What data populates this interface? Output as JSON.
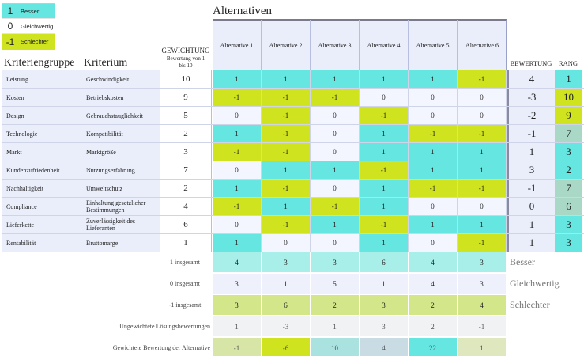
{
  "legend": [
    {
      "symbol": "1",
      "label": "Besser",
      "color": "#66e6e0"
    },
    {
      "symbol": "0",
      "label": "Gleichwertig",
      "color": "#ffffff"
    },
    {
      "symbol": "-1",
      "label": "Schlechter",
      "color": "#cfe31e"
    }
  ],
  "headers": {
    "alternatives_title": "Alternativen",
    "group": "Kriteriengruppe",
    "criterion": "Kriterium",
    "weighting": "GEWICHTUNG",
    "weighting_sub": "Bewertung von 1 bis 10",
    "rating": "BEWERTUNG",
    "rank": "RANG"
  },
  "alternatives": [
    "Alternative 1",
    "Alternative 2",
    "Alternative 3",
    "Alternative 4",
    "Alternative 5",
    "Alternative 6"
  ],
  "rows": [
    {
      "group": "Leistung",
      "criterion": "Geschwindigkeit",
      "weight": "10",
      "values": [
        "1",
        "1",
        "1",
        "1",
        "1",
        "-1"
      ],
      "score": "4",
      "rank": "1"
    },
    {
      "group": "Kosten",
      "criterion": "Betriebskosten",
      "weight": "9",
      "values": [
        "-1",
        "-1",
        "-1",
        "0",
        "0",
        "0"
      ],
      "score": "-3",
      "rank": "10"
    },
    {
      "group": "Design",
      "criterion": "Gebrauchstauglichkeit",
      "weight": "5",
      "values": [
        "0",
        "-1",
        "0",
        "-1",
        "0",
        "0"
      ],
      "score": "-2",
      "rank": "9"
    },
    {
      "group": "Technologie",
      "criterion": "Kompatibilität",
      "weight": "2",
      "values": [
        "1",
        "-1",
        "0",
        "1",
        "-1",
        "-1"
      ],
      "score": "-1",
      "rank": "7"
    },
    {
      "group": "Markt",
      "criterion": "Marktgröße",
      "weight": "3",
      "values": [
        "-1",
        "-1",
        "0",
        "1",
        "1",
        "1"
      ],
      "score": "1",
      "rank": "3"
    },
    {
      "group": "Kundenzufriedenheit",
      "criterion": "Nutzungserfahrung",
      "weight": "7",
      "values": [
        "0",
        "1",
        "1",
        "-1",
        "1",
        "1"
      ],
      "score": "3",
      "rank": "2"
    },
    {
      "group": "Nachhaltigkeit",
      "criterion": "Umweltschutz",
      "weight": "2",
      "values": [
        "1",
        "-1",
        "0",
        "1",
        "-1",
        "-1"
      ],
      "score": "-1",
      "rank": "7"
    },
    {
      "group": "Compliance",
      "criterion": "Einhaltung gesetzlicher Bestimmungen",
      "weight": "4",
      "values": [
        "-1",
        "1",
        "-1",
        "1",
        "0",
        "0"
      ],
      "score": "0",
      "rank": "6"
    },
    {
      "group": "Lieferkette",
      "criterion": "Zuverlässigkeit des Lieferanten",
      "weight": "6",
      "values": [
        "0",
        "-1",
        "1",
        "-1",
        "1",
        "1"
      ],
      "score": "1",
      "rank": "3"
    },
    {
      "group": "Rentabilität",
      "criterion": "Bruttomarge",
      "weight": "1",
      "values": [
        "1",
        "0",
        "0",
        "1",
        "0",
        "-1"
      ],
      "score": "1",
      "rank": "3"
    }
  ],
  "summary": [
    {
      "label": "1 insgesamt",
      "values": [
        "4",
        "3",
        "3",
        "6",
        "4",
        "3"
      ],
      "tag": "Besser"
    },
    {
      "label": "0 insgesamt",
      "values": [
        "3",
        "1",
        "5",
        "1",
        "4",
        "3"
      ],
      "tag": "Gleichwertig"
    },
    {
      "label": "-1 insgesamt",
      "values": [
        "3",
        "6",
        "2",
        "3",
        "2",
        "4"
      ],
      "tag": "Schlechter"
    },
    {
      "label": "Ungewichtete Lösungsbewertungen",
      "values": [
        "1",
        "-3",
        "1",
        "3",
        "2",
        "-1"
      ]
    },
    {
      "label": "Gewichtete Bewertung der Alternative",
      "values": [
        "-1",
        "-6",
        "10",
        "4",
        "22",
        "1"
      ]
    }
  ],
  "colors": {
    "better": "#66e6e0",
    "equal": "#f4f6ff",
    "worse": "#cfe31e",
    "row_header_bg": "#eaeefb",
    "rank_low": "#66e6e0",
    "rank_mid": "#a9d9c6",
    "rank_high": "#cfe31e"
  }
}
